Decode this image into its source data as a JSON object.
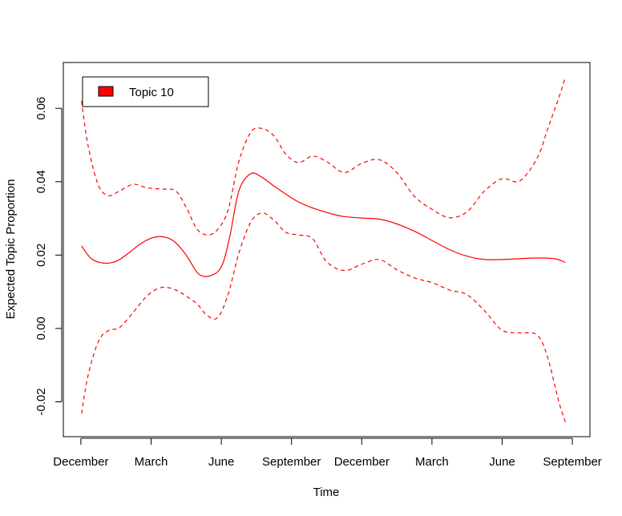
{
  "chart_data": {
    "type": "line",
    "title": "",
    "xlabel": "Time",
    "ylabel": "Expected Topic Proportion",
    "xlim": [
      -0.25,
      7.25
    ],
    "ylim": [
      -0.0295,
      0.0725
    ],
    "x_tick_labels": [
      "December",
      "March",
      "June",
      "September",
      "December",
      "March",
      "June",
      "September"
    ],
    "y_ticks": [
      -0.02,
      0.0,
      0.02,
      0.04,
      0.06
    ],
    "y_tick_labels": [
      "-0.02",
      "0.00",
      "0.02",
      "0.04",
      "0.06"
    ],
    "legend": {
      "position": "top-left",
      "entries": [
        {
          "label": "Topic 10",
          "color": "#ff0000"
        }
      ]
    },
    "grid": false,
    "colors": {
      "series": "#ff0000",
      "axis": "#000000"
    },
    "series": [
      {
        "style": "solid",
        "x": [
          0.01,
          0.15,
          0.33,
          0.5,
          0.67,
          0.83,
          1.0,
          1.17,
          1.33,
          1.5,
          1.67,
          1.83,
          2.0,
          2.12,
          2.25,
          2.42,
          2.58,
          2.75,
          2.92,
          3.08,
          3.25,
          3.42,
          3.58,
          3.75,
          4.0,
          4.25,
          4.5,
          4.75,
          5.0,
          5.25,
          5.5,
          5.75,
          6.0,
          6.25,
          6.5,
          6.75,
          6.9
        ],
        "values": [
          0.0225,
          0.019,
          0.0178,
          0.0183,
          0.0204,
          0.0228,
          0.0246,
          0.025,
          0.0237,
          0.02,
          0.015,
          0.0143,
          0.0168,
          0.025,
          0.0375,
          0.0422,
          0.0412,
          0.0388,
          0.0366,
          0.0347,
          0.0332,
          0.0321,
          0.0312,
          0.0305,
          0.0301,
          0.0298,
          0.0285,
          0.0265,
          0.024,
          0.0215,
          0.0197,
          0.0188,
          0.0188,
          0.019,
          0.0192,
          0.019,
          0.018
        ]
      },
      {
        "style": "dashed",
        "x": [
          0.01,
          0.1,
          0.25,
          0.4,
          0.55,
          0.75,
          0.95,
          1.15,
          1.35,
          1.5,
          1.65,
          1.8,
          1.95,
          2.1,
          2.25,
          2.42,
          2.58,
          2.75,
          2.92,
          3.1,
          3.3,
          3.5,
          3.75,
          4.0,
          4.25,
          4.5,
          4.75,
          5.0,
          5.25,
          5.5,
          5.75,
          6.0,
          6.25,
          6.5,
          6.65,
          6.8,
          6.9
        ],
        "values": [
          0.062,
          0.05,
          0.039,
          0.0362,
          0.0375,
          0.0393,
          0.0383,
          0.038,
          0.0375,
          0.033,
          0.0272,
          0.0255,
          0.027,
          0.0325,
          0.0455,
          0.0535,
          0.0545,
          0.0525,
          0.0475,
          0.0452,
          0.047,
          0.0455,
          0.0425,
          0.045,
          0.046,
          0.0425,
          0.036,
          0.0325,
          0.0302,
          0.0318,
          0.0375,
          0.0408,
          0.0402,
          0.0465,
          0.0545,
          0.0625,
          0.0685
        ]
      },
      {
        "style": "dashed",
        "x": [
          0.01,
          0.1,
          0.25,
          0.4,
          0.55,
          0.75,
          0.95,
          1.15,
          1.35,
          1.5,
          1.65,
          1.8,
          1.95,
          2.1,
          2.25,
          2.42,
          2.58,
          2.75,
          2.92,
          3.1,
          3.3,
          3.5,
          3.75,
          4.0,
          4.25,
          4.5,
          4.75,
          5.0,
          5.25,
          5.5,
          5.75,
          6.0,
          6.25,
          6.5,
          6.65,
          6.8,
          6.9
        ],
        "values": [
          -0.0232,
          -0.013,
          -0.0035,
          -0.0005,
          0.0002,
          0.0045,
          0.009,
          0.0112,
          0.0105,
          0.0088,
          0.0068,
          0.0035,
          0.003,
          0.0095,
          0.0205,
          0.029,
          0.0315,
          0.0295,
          0.0262,
          0.0255,
          0.0245,
          0.0182,
          0.0158,
          0.0175,
          0.0188,
          0.016,
          0.0138,
          0.0125,
          0.0105,
          0.0092,
          0.0048,
          -0.0005,
          -0.0012,
          -0.0018,
          -0.008,
          -0.0195,
          -0.0255
        ]
      }
    ]
  }
}
